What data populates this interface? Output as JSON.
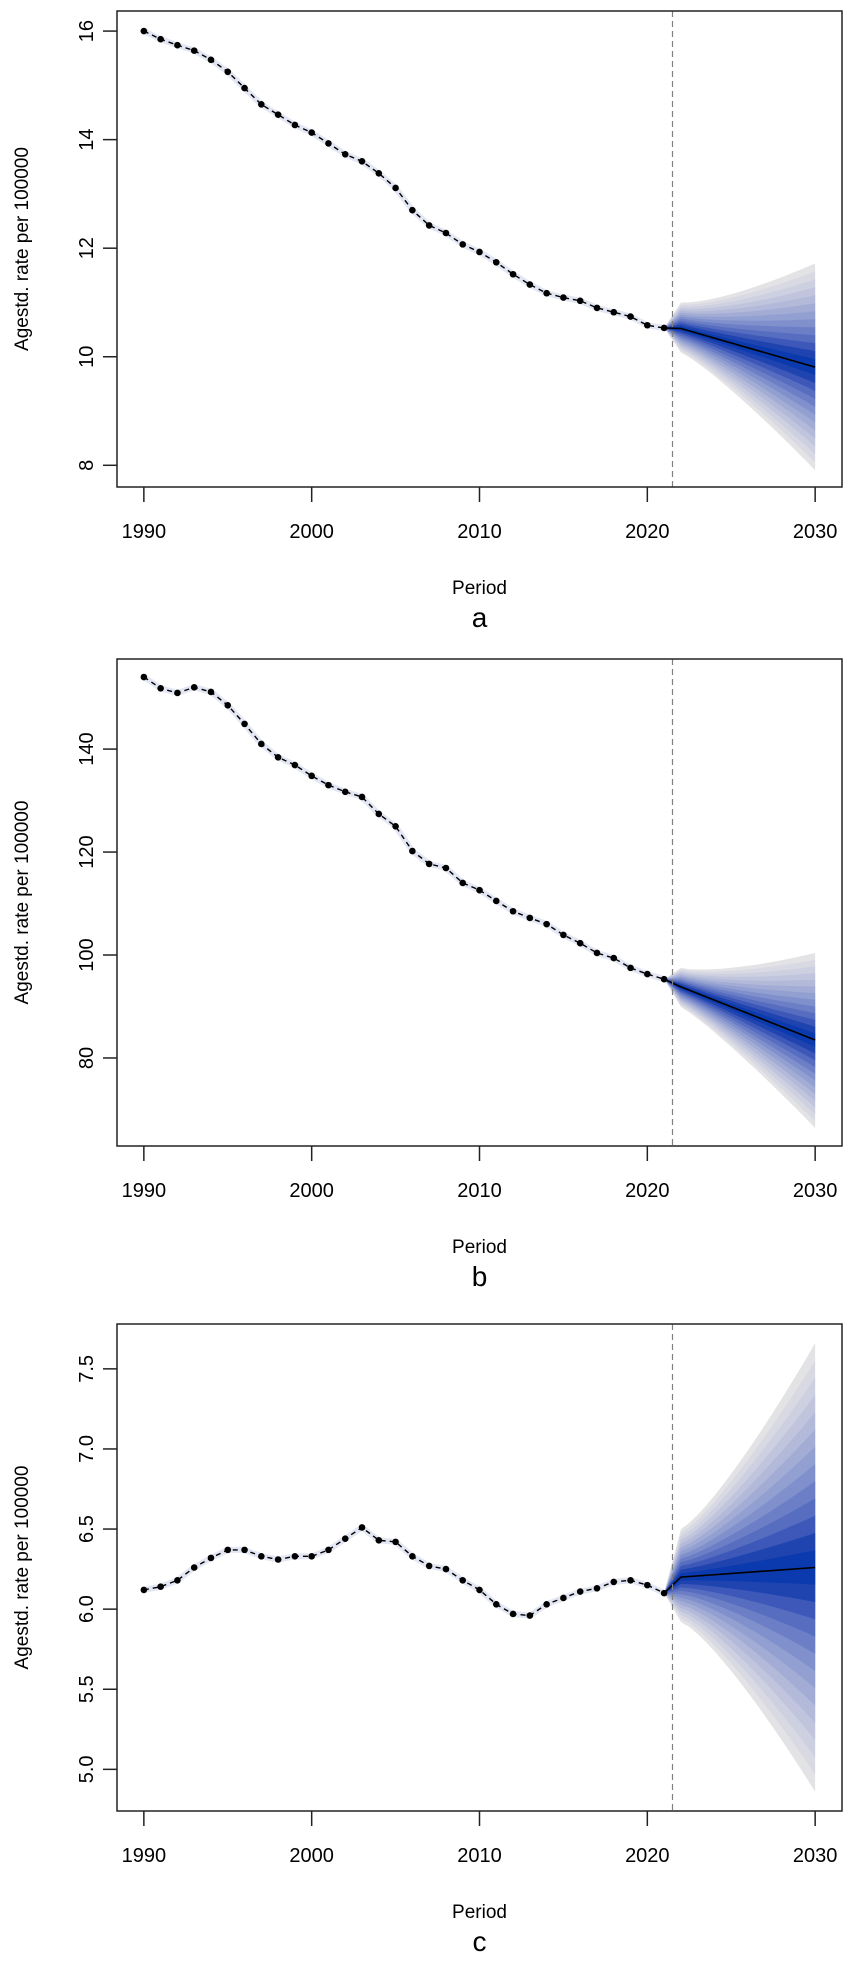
{
  "figure": {
    "panels": [
      "a",
      "b",
      "c"
    ]
  },
  "chart_data": [
    {
      "type": "line",
      "panel_label": "a",
      "title": "",
      "xlabel": "Period",
      "ylabel": "Agestd. rate per 100000",
      "xlim": [
        1988.4,
        2031.6
      ],
      "ylim": [
        7.6,
        16.37
      ],
      "x_ticks": [
        1990,
        2000,
        2010,
        2020,
        2030
      ],
      "y_ticks": [
        8,
        10,
        12,
        14,
        16
      ],
      "y_tick_labels": [
        "8",
        "10",
        "12",
        "14",
        "16"
      ],
      "grid": false,
      "forecast_start_line": 2021.5,
      "observed": {
        "x": [
          1990,
          1991,
          1992,
          1993,
          1994,
          1995,
          1996,
          1997,
          1998,
          1999,
          2000,
          2001,
          2002,
          2003,
          2004,
          2005,
          2006,
          2007,
          2008,
          2009,
          2010,
          2011,
          2012,
          2013,
          2014,
          2015,
          2016,
          2017,
          2018,
          2019,
          2020,
          2021
        ],
        "y": [
          16.0,
          15.85,
          15.74,
          15.64,
          15.47,
          15.25,
          14.95,
          14.65,
          14.46,
          14.27,
          14.13,
          13.93,
          13.73,
          13.6,
          13.38,
          13.11,
          12.7,
          12.42,
          12.28,
          12.07,
          11.93,
          11.74,
          11.52,
          11.33,
          11.17,
          11.09,
          11.03,
          10.9,
          10.82,
          10.74,
          10.58,
          10.53
        ]
      },
      "forecast": {
        "x": [
          2021,
          2022,
          2030
        ],
        "median": [
          10.53,
          10.52,
          9.81
        ],
        "outer_upper": [
          10.53,
          11.0,
          11.72
        ],
        "outer_lower": [
          10.53,
          10.08,
          7.91
        ]
      }
    },
    {
      "type": "line",
      "panel_label": "b",
      "title": "",
      "xlabel": "Period",
      "ylabel": "Agestd. rate per 100000",
      "xlim": [
        1988.4,
        2031.6
      ],
      "ylim": [
        62.9,
        157.5
      ],
      "x_ticks": [
        1990,
        2000,
        2010,
        2020,
        2030
      ],
      "y_ticks": [
        80,
        100,
        120,
        140
      ],
      "y_tick_labels": [
        "80",
        "100",
        "120",
        "140"
      ],
      "grid": false,
      "forecast_start_line": 2021.5,
      "observed": {
        "x": [
          1990,
          1991,
          1992,
          1993,
          1994,
          1995,
          1996,
          1997,
          1998,
          1999,
          2000,
          2001,
          2002,
          2003,
          2004,
          2005,
          2006,
          2007,
          2008,
          2009,
          2010,
          2011,
          2012,
          2013,
          2014,
          2015,
          2016,
          2017,
          2018,
          2019,
          2020,
          2021
        ],
        "y": [
          154.0,
          151.8,
          150.9,
          152.0,
          151.1,
          148.5,
          144.9,
          141.0,
          138.4,
          136.9,
          134.8,
          133.0,
          131.7,
          130.7,
          127.4,
          125.0,
          120.2,
          117.7,
          116.9,
          114.0,
          112.6,
          110.5,
          108.5,
          107.2,
          106.0,
          103.9,
          102.3,
          100.4,
          99.4,
          97.5,
          96.3,
          95.3
        ]
      },
      "forecast": {
        "x": [
          2021,
          2022,
          2030
        ],
        "median": [
          95.3,
          93.8,
          83.5
        ],
        "outer_upper": [
          95.3,
          97.5,
          100.4
        ],
        "outer_lower": [
          95.3,
          89.9,
          66.4
        ]
      }
    },
    {
      "type": "line",
      "panel_label": "c",
      "title": "",
      "xlabel": "Period",
      "ylabel": "Agestd. rate per 100000",
      "xlim": [
        1988.4,
        2031.6
      ],
      "ylim": [
        4.74,
        7.78
      ],
      "x_ticks": [
        1990,
        2000,
        2010,
        2020,
        2030
      ],
      "y_ticks": [
        5.0,
        5.5,
        6.0,
        6.5,
        7.0,
        7.5
      ],
      "y_tick_labels": [
        "5.0",
        "5.5",
        "6.0",
        "6.5",
        "7.0",
        "7.5"
      ],
      "grid": false,
      "forecast_start_line": 2021.5,
      "observed": {
        "x": [
          1990,
          1991,
          1992,
          1993,
          1994,
          1995,
          1996,
          1997,
          1998,
          1999,
          2000,
          2001,
          2002,
          2003,
          2004,
          2005,
          2006,
          2007,
          2008,
          2009,
          2010,
          2011,
          2012,
          2013,
          2014,
          2015,
          2016,
          2017,
          2018,
          2019,
          2020,
          2021
        ],
        "y": [
          6.12,
          6.14,
          6.18,
          6.26,
          6.32,
          6.37,
          6.37,
          6.33,
          6.31,
          6.33,
          6.33,
          6.37,
          6.44,
          6.51,
          6.43,
          6.42,
          6.33,
          6.27,
          6.25,
          6.18,
          6.12,
          6.03,
          5.97,
          5.96,
          6.03,
          6.07,
          6.11,
          6.13,
          6.17,
          6.18,
          6.15,
          6.1
        ]
      },
      "forecast": {
        "x": [
          2021,
          2022,
          2030
        ],
        "median": [
          6.1,
          6.2,
          6.26
        ],
        "outer_upper": [
          6.1,
          6.5,
          7.66
        ],
        "outer_lower": [
          6.1,
          5.92,
          4.86
        ]
      }
    }
  ],
  "style": {
    "fan_colors": [
      "#e3e3e6",
      "#d8d9e2",
      "#cdd0e0",
      "#c0c5dd",
      "#b2b9d9",
      "#a3acd5",
      "#929fd1",
      "#8090cc",
      "#6c7fc6",
      "#566dc0",
      "#3d58b8",
      "#1f44b0",
      "#0a3aad"
    ],
    "point_color": "#000000",
    "line_color": "#000000",
    "vline_color": "#808080"
  }
}
